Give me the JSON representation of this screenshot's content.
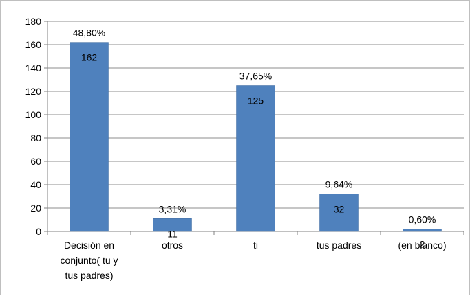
{
  "chart_data": {
    "type": "bar",
    "categories": [
      [
        "Decisión en",
        "conjunto( tu y",
        "tus padres)"
      ],
      [
        "otros"
      ],
      [
        "ti"
      ],
      [
        "tus padres"
      ],
      [
        "(en blanco)"
      ]
    ],
    "values": [
      162,
      11,
      125,
      32,
      2
    ],
    "value_labels": [
      "162",
      "11",
      "125",
      "32",
      "2"
    ],
    "percent_labels": [
      "48,80%",
      "3,31%",
      "37,65%",
      "9,64%",
      "0,60%"
    ],
    "ylim": [
      0,
      180
    ],
    "yticks": [
      "0",
      "20",
      "40",
      "60",
      "80",
      "100",
      "120",
      "140",
      "160",
      "180"
    ],
    "title": "",
    "xlabel": "",
    "ylabel": "",
    "grid": true,
    "legend": "none",
    "colors": {
      "bar": "#4f81bd",
      "bar_edge": "#3e6a9e",
      "grid": "#8c8c8c",
      "axis": "#808080"
    }
  }
}
